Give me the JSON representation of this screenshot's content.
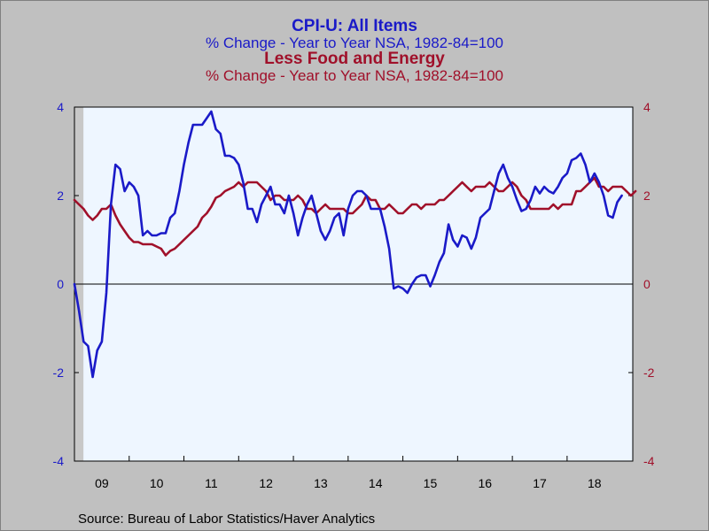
{
  "titles": {
    "main": "CPI-U: All Items",
    "sub": "% Change - Year to Year    NSA, 1982-84=100",
    "main2": "Less Food and Energy",
    "sub2": "% Change - Year to Year    NSA, 1982-84=100"
  },
  "source": "Source:  Bureau of Labor Statistics/Haver Analytics",
  "colors": {
    "series1": "#1a1ac8",
    "series2": "#a0102a",
    "plot_bg": "#eef6ff",
    "frame_bg": "#c0c0c0",
    "shade": "#c8c8c8"
  },
  "chart_data": {
    "type": "line",
    "x_tick_labels": [
      "09",
      "10",
      "11",
      "12",
      "13",
      "14",
      "15",
      "16",
      "17",
      "18"
    ],
    "ylim": [
      -4,
      4
    ],
    "y_ticks_left": [
      "4",
      "2",
      "0",
      "-2",
      "-4"
    ],
    "y_ticks_right": [
      "4",
      "2",
      "0",
      "-2",
      "-4"
    ],
    "zero_line": true,
    "recession_shade": [
      "2009-01",
      "2009-02"
    ],
    "series": [
      {
        "name": "CPI-U: All Items",
        "axis": "left",
        "points": [
          [
            "2009-01",
            0.0
          ],
          [
            "2009-02",
            -0.6
          ],
          [
            "2009-03",
            -1.3
          ],
          [
            "2009-04",
            -1.4
          ],
          [
            "2009-05",
            -2.1
          ],
          [
            "2009-06",
            -1.5
          ],
          [
            "2009-07",
            -1.3
          ],
          [
            "2009-08",
            -0.2
          ],
          [
            "2009-09",
            1.8
          ],
          [
            "2009-10",
            2.7
          ],
          [
            "2009-11",
            2.6
          ],
          [
            "2009-12",
            2.1
          ],
          [
            "2010-01",
            2.3
          ],
          [
            "2010-02",
            2.2
          ],
          [
            "2010-03",
            2.0
          ],
          [
            "2010-04",
            1.1
          ],
          [
            "2010-05",
            1.2
          ],
          [
            "2010-06",
            1.1
          ],
          [
            "2010-07",
            1.1
          ],
          [
            "2010-08",
            1.15
          ],
          [
            "2010-09",
            1.15
          ],
          [
            "2010-10",
            1.5
          ],
          [
            "2010-11",
            1.6
          ],
          [
            "2010-12",
            2.1
          ],
          [
            "2011-01",
            2.7
          ],
          [
            "2011-02",
            3.2
          ],
          [
            "2011-03",
            3.6
          ],
          [
            "2011-04",
            3.6
          ],
          [
            "2011-05",
            3.6
          ],
          [
            "2011-06",
            3.75
          ],
          [
            "2011-07",
            3.9
          ],
          [
            "2011-08",
            3.5
          ],
          [
            "2011-09",
            3.4
          ],
          [
            "2011-10",
            2.9
          ],
          [
            "2011-11",
            2.9
          ],
          [
            "2011-12",
            2.85
          ],
          [
            "2012-01",
            2.7
          ],
          [
            "2012-02",
            2.3
          ],
          [
            "2012-03",
            1.7
          ],
          [
            "2012-04",
            1.7
          ],
          [
            "2012-05",
            1.4
          ],
          [
            "2012-06",
            1.8
          ],
          [
            "2012-07",
            2.0
          ],
          [
            "2012-08",
            2.2
          ],
          [
            "2012-09",
            1.8
          ],
          [
            "2012-10",
            1.8
          ],
          [
            "2012-11",
            1.6
          ],
          [
            "2012-12",
            2.0
          ],
          [
            "2013-01",
            1.6
          ],
          [
            "2013-02",
            1.1
          ],
          [
            "2013-03",
            1.5
          ],
          [
            "2013-04",
            1.8
          ],
          [
            "2013-05",
            2.0
          ],
          [
            "2013-06",
            1.6
          ],
          [
            "2013-07",
            1.2
          ],
          [
            "2013-08",
            1.0
          ],
          [
            "2013-09",
            1.2
          ],
          [
            "2013-10",
            1.5
          ],
          [
            "2013-11",
            1.6
          ],
          [
            "2013-12",
            1.1
          ],
          [
            "2014-01",
            1.7
          ],
          [
            "2014-02",
            2.0
          ],
          [
            "2014-03",
            2.1
          ],
          [
            "2014-04",
            2.1
          ],
          [
            "2014-05",
            2.0
          ],
          [
            "2014-06",
            1.7
          ],
          [
            "2014-07",
            1.7
          ],
          [
            "2014-08",
            1.7
          ],
          [
            "2014-09",
            1.3
          ],
          [
            "2014-10",
            0.8
          ],
          [
            "2014-11",
            -0.1
          ],
          [
            "2014-12",
            -0.05
          ],
          [
            "2015-01",
            -0.1
          ],
          [
            "2015-02",
            -0.2
          ],
          [
            "2015-03",
            0.0
          ],
          [
            "2015-04",
            0.15
          ],
          [
            "2015-05",
            0.2
          ],
          [
            "2015-06",
            0.2
          ],
          [
            "2015-07",
            -0.05
          ],
          [
            "2015-08",
            0.2
          ],
          [
            "2015-09",
            0.5
          ],
          [
            "2015-10",
            0.7
          ],
          [
            "2015-11",
            1.35
          ],
          [
            "2015-12",
            1.0
          ],
          [
            "2016-01",
            0.85
          ],
          [
            "2016-02",
            1.1
          ],
          [
            "2016-03",
            1.05
          ],
          [
            "2016-04",
            0.8
          ],
          [
            "2016-05",
            1.05
          ],
          [
            "2016-06",
            1.5
          ],
          [
            "2016-07",
            1.6
          ],
          [
            "2016-08",
            1.7
          ],
          [
            "2016-09",
            2.1
          ],
          [
            "2016-10",
            2.5
          ],
          [
            "2016-11",
            2.7
          ],
          [
            "2016-12",
            2.4
          ],
          [
            "2017-01",
            2.2
          ],
          [
            "2017-02",
            1.9
          ],
          [
            "2017-03",
            1.65
          ],
          [
            "2017-04",
            1.7
          ],
          [
            "2017-05",
            1.9
          ],
          [
            "2017-06",
            2.2
          ],
          [
            "2017-07",
            2.05
          ],
          [
            "2017-08",
            2.2
          ],
          [
            "2017-09",
            2.1
          ],
          [
            "2017-10",
            2.05
          ],
          [
            "2017-11",
            2.2
          ],
          [
            "2017-12",
            2.4
          ],
          [
            "2018-01",
            2.5
          ],
          [
            "2018-02",
            2.8
          ],
          [
            "2018-03",
            2.85
          ],
          [
            "2018-04",
            2.95
          ],
          [
            "2018-05",
            2.7
          ],
          [
            "2018-06",
            2.3
          ],
          [
            "2018-07",
            2.5
          ],
          [
            "2018-08",
            2.3
          ],
          [
            "2018-09",
            2.0
          ],
          [
            "2018-10",
            1.55
          ],
          [
            "2018-11",
            1.5
          ],
          [
            "2018-12",
            1.85
          ],
          [
            "2019-01",
            2.0
          ]
        ]
      },
      {
        "name": "Less Food and Energy",
        "axis": "right",
        "points": [
          [
            "2009-01",
            1.9
          ],
          [
            "2009-02",
            1.8
          ],
          [
            "2009-03",
            1.7
          ],
          [
            "2009-04",
            1.55
          ],
          [
            "2009-05",
            1.45
          ],
          [
            "2009-06",
            1.55
          ],
          [
            "2009-07",
            1.7
          ],
          [
            "2009-08",
            1.7
          ],
          [
            "2009-09",
            1.8
          ],
          [
            "2009-10",
            1.55
          ],
          [
            "2009-11",
            1.35
          ],
          [
            "2009-12",
            1.2
          ],
          [
            "2010-01",
            1.05
          ],
          [
            "2010-02",
            0.95
          ],
          [
            "2010-03",
            0.95
          ],
          [
            "2010-04",
            0.9
          ],
          [
            "2010-05",
            0.9
          ],
          [
            "2010-06",
            0.9
          ],
          [
            "2010-07",
            0.85
          ],
          [
            "2010-08",
            0.8
          ],
          [
            "2010-09",
            0.65
          ],
          [
            "2010-10",
            0.75
          ],
          [
            "2010-11",
            0.8
          ],
          [
            "2010-12",
            0.9
          ],
          [
            "2011-01",
            1.0
          ],
          [
            "2011-02",
            1.1
          ],
          [
            "2011-03",
            1.2
          ],
          [
            "2011-04",
            1.3
          ],
          [
            "2011-05",
            1.5
          ],
          [
            "2011-06",
            1.6
          ],
          [
            "2011-07",
            1.75
          ],
          [
            "2011-08",
            1.95
          ],
          [
            "2011-09",
            2.0
          ],
          [
            "2011-10",
            2.1
          ],
          [
            "2011-11",
            2.15
          ],
          [
            "2011-12",
            2.2
          ],
          [
            "2012-01",
            2.3
          ],
          [
            "2012-02",
            2.2
          ],
          [
            "2012-03",
            2.3
          ],
          [
            "2012-04",
            2.3
          ],
          [
            "2012-05",
            2.3
          ],
          [
            "2012-06",
            2.2
          ],
          [
            "2012-07",
            2.1
          ],
          [
            "2012-08",
            1.9
          ],
          [
            "2012-09",
            2.0
          ],
          [
            "2012-10",
            2.0
          ],
          [
            "2012-11",
            1.9
          ],
          [
            "2012-12",
            1.9
          ],
          [
            "2013-01",
            1.9
          ],
          [
            "2013-02",
            2.0
          ],
          [
            "2013-03",
            1.9
          ],
          [
            "2013-04",
            1.7
          ],
          [
            "2013-05",
            1.7
          ],
          [
            "2013-06",
            1.6
          ],
          [
            "2013-07",
            1.7
          ],
          [
            "2013-08",
            1.8
          ],
          [
            "2013-09",
            1.7
          ],
          [
            "2013-10",
            1.7
          ],
          [
            "2013-11",
            1.7
          ],
          [
            "2013-12",
            1.7
          ],
          [
            "2014-01",
            1.6
          ],
          [
            "2014-02",
            1.6
          ],
          [
            "2014-03",
            1.7
          ],
          [
            "2014-04",
            1.8
          ],
          [
            "2014-05",
            2.0
          ],
          [
            "2014-06",
            1.9
          ],
          [
            "2014-07",
            1.9
          ],
          [
            "2014-08",
            1.7
          ],
          [
            "2014-09",
            1.7
          ],
          [
            "2014-10",
            1.8
          ],
          [
            "2014-11",
            1.7
          ],
          [
            "2014-12",
            1.6
          ],
          [
            "2015-01",
            1.6
          ],
          [
            "2015-02",
            1.7
          ],
          [
            "2015-03",
            1.8
          ],
          [
            "2015-04",
            1.8
          ],
          [
            "2015-05",
            1.7
          ],
          [
            "2015-06",
            1.8
          ],
          [
            "2015-07",
            1.8
          ],
          [
            "2015-08",
            1.8
          ],
          [
            "2015-09",
            1.9
          ],
          [
            "2015-10",
            1.9
          ],
          [
            "2015-11",
            2.0
          ],
          [
            "2015-12",
            2.1
          ],
          [
            "2016-01",
            2.2
          ],
          [
            "2016-02",
            2.3
          ],
          [
            "2016-03",
            2.2
          ],
          [
            "2016-04",
            2.1
          ],
          [
            "2016-05",
            2.2
          ],
          [
            "2016-06",
            2.2
          ],
          [
            "2016-07",
            2.2
          ],
          [
            "2016-08",
            2.3
          ],
          [
            "2016-09",
            2.2
          ],
          [
            "2016-10",
            2.1
          ],
          [
            "2016-11",
            2.1
          ],
          [
            "2016-12",
            2.2
          ],
          [
            "2017-01",
            2.3
          ],
          [
            "2017-02",
            2.2
          ],
          [
            "2017-03",
            2.0
          ],
          [
            "2017-04",
            1.9
          ],
          [
            "2017-05",
            1.7
          ],
          [
            "2017-06",
            1.7
          ],
          [
            "2017-07",
            1.7
          ],
          [
            "2017-08",
            1.7
          ],
          [
            "2017-09",
            1.7
          ],
          [
            "2017-10",
            1.8
          ],
          [
            "2017-11",
            1.7
          ],
          [
            "2017-12",
            1.8
          ],
          [
            "2018-01",
            1.8
          ],
          [
            "2018-02",
            1.8
          ],
          [
            "2018-03",
            2.1
          ],
          [
            "2018-04",
            2.1
          ],
          [
            "2018-05",
            2.2
          ],
          [
            "2018-06",
            2.3
          ],
          [
            "2018-07",
            2.4
          ],
          [
            "2018-08",
            2.2
          ],
          [
            "2018-09",
            2.2
          ],
          [
            "2018-10",
            2.1
          ],
          [
            "2018-11",
            2.2
          ],
          [
            "2018-12",
            2.2
          ],
          [
            "2019-01",
            2.2
          ],
          [
            "2019-02",
            2.1
          ],
          [
            "2019-03",
            2.0
          ],
          [
            "2019-04",
            2.1
          ]
        ]
      }
    ]
  }
}
